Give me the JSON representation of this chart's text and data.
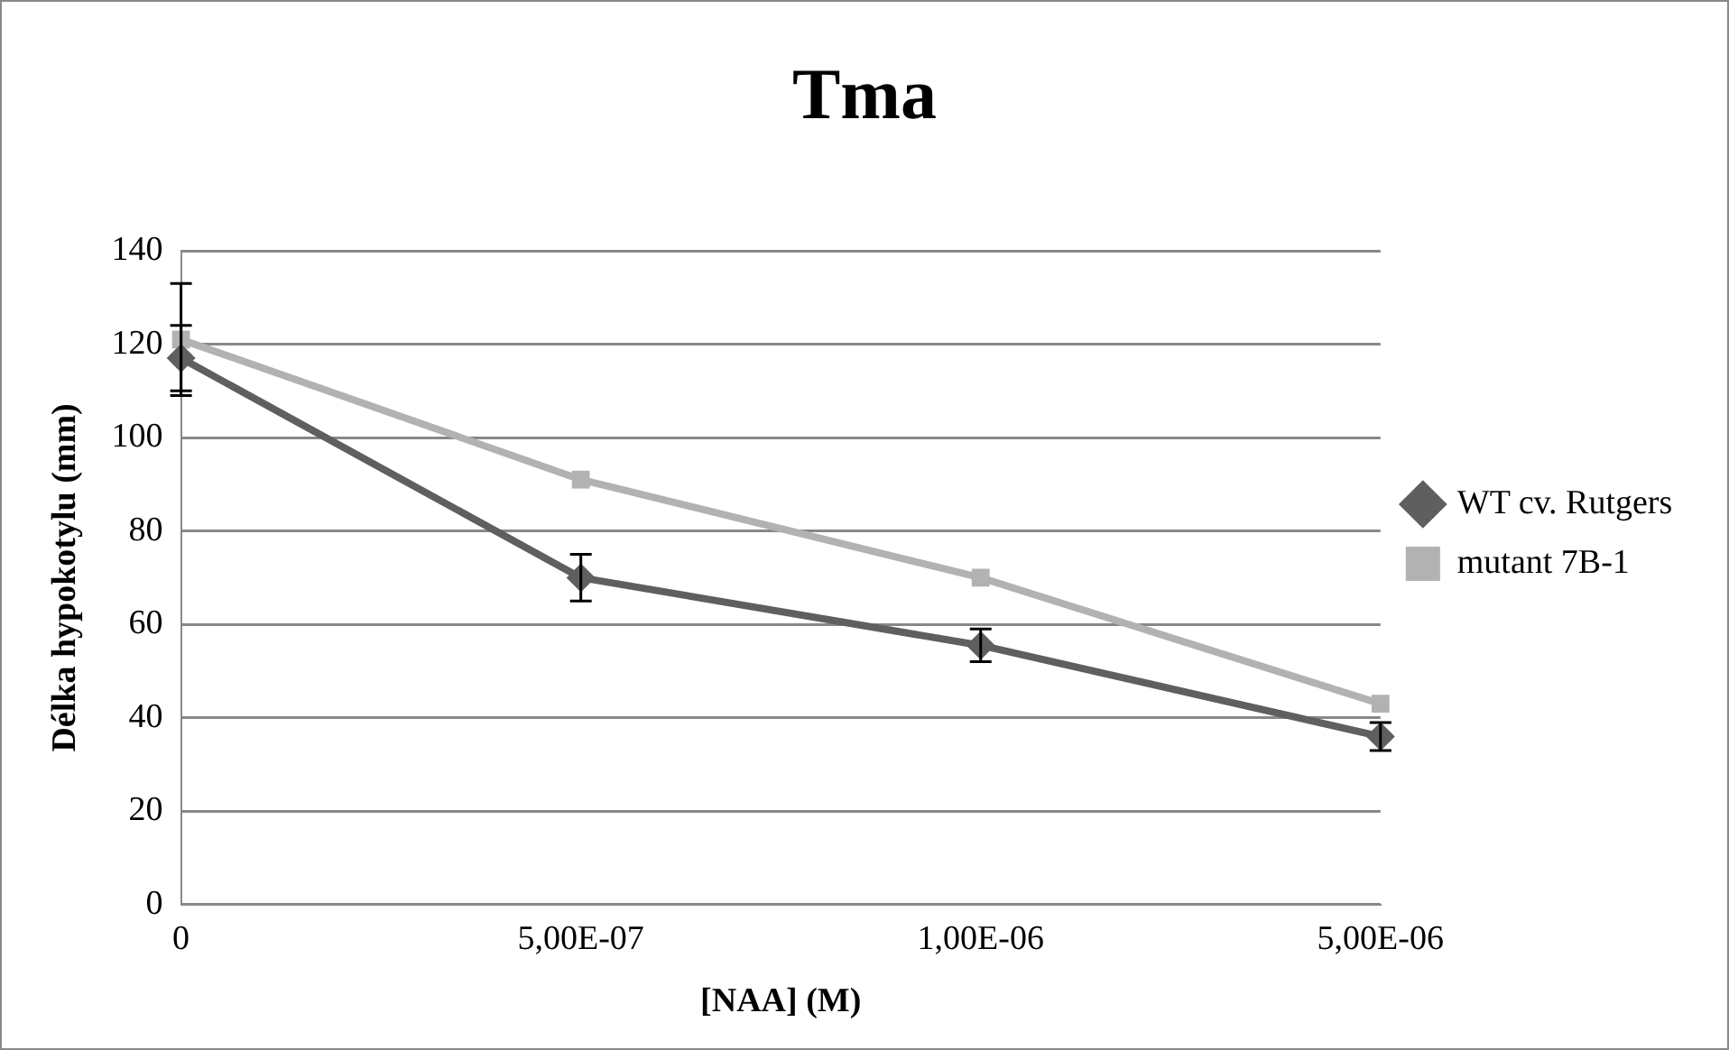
{
  "chart_data": {
    "type": "line",
    "title": "Tma",
    "xlabel": "[NAA] (M)",
    "ylabel": "Délka hypokotylu (mm)",
    "categories": [
      "0",
      "5,00E-07",
      "1,00E-06",
      "5,00E-06"
    ],
    "series": [
      {
        "name": "WT cv. Rutgers",
        "color": "#5f5f5f",
        "marker": "diamond",
        "values": [
          117,
          70,
          55.5,
          36
        ],
        "errors": [
          7,
          5,
          3.5,
          3
        ]
      },
      {
        "name": "mutant 7B-1",
        "color": "#b2b2b2",
        "marker": "square",
        "values": [
          121,
          91,
          70,
          43
        ],
        "errors": [
          12,
          null,
          null,
          null
        ]
      }
    ],
    "ylim": [
      0,
      140
    ],
    "yticks": [
      0,
      20,
      40,
      60,
      80,
      100,
      120,
      140
    ],
    "grid": "y",
    "legend": "right",
    "line_style": "solid"
  }
}
